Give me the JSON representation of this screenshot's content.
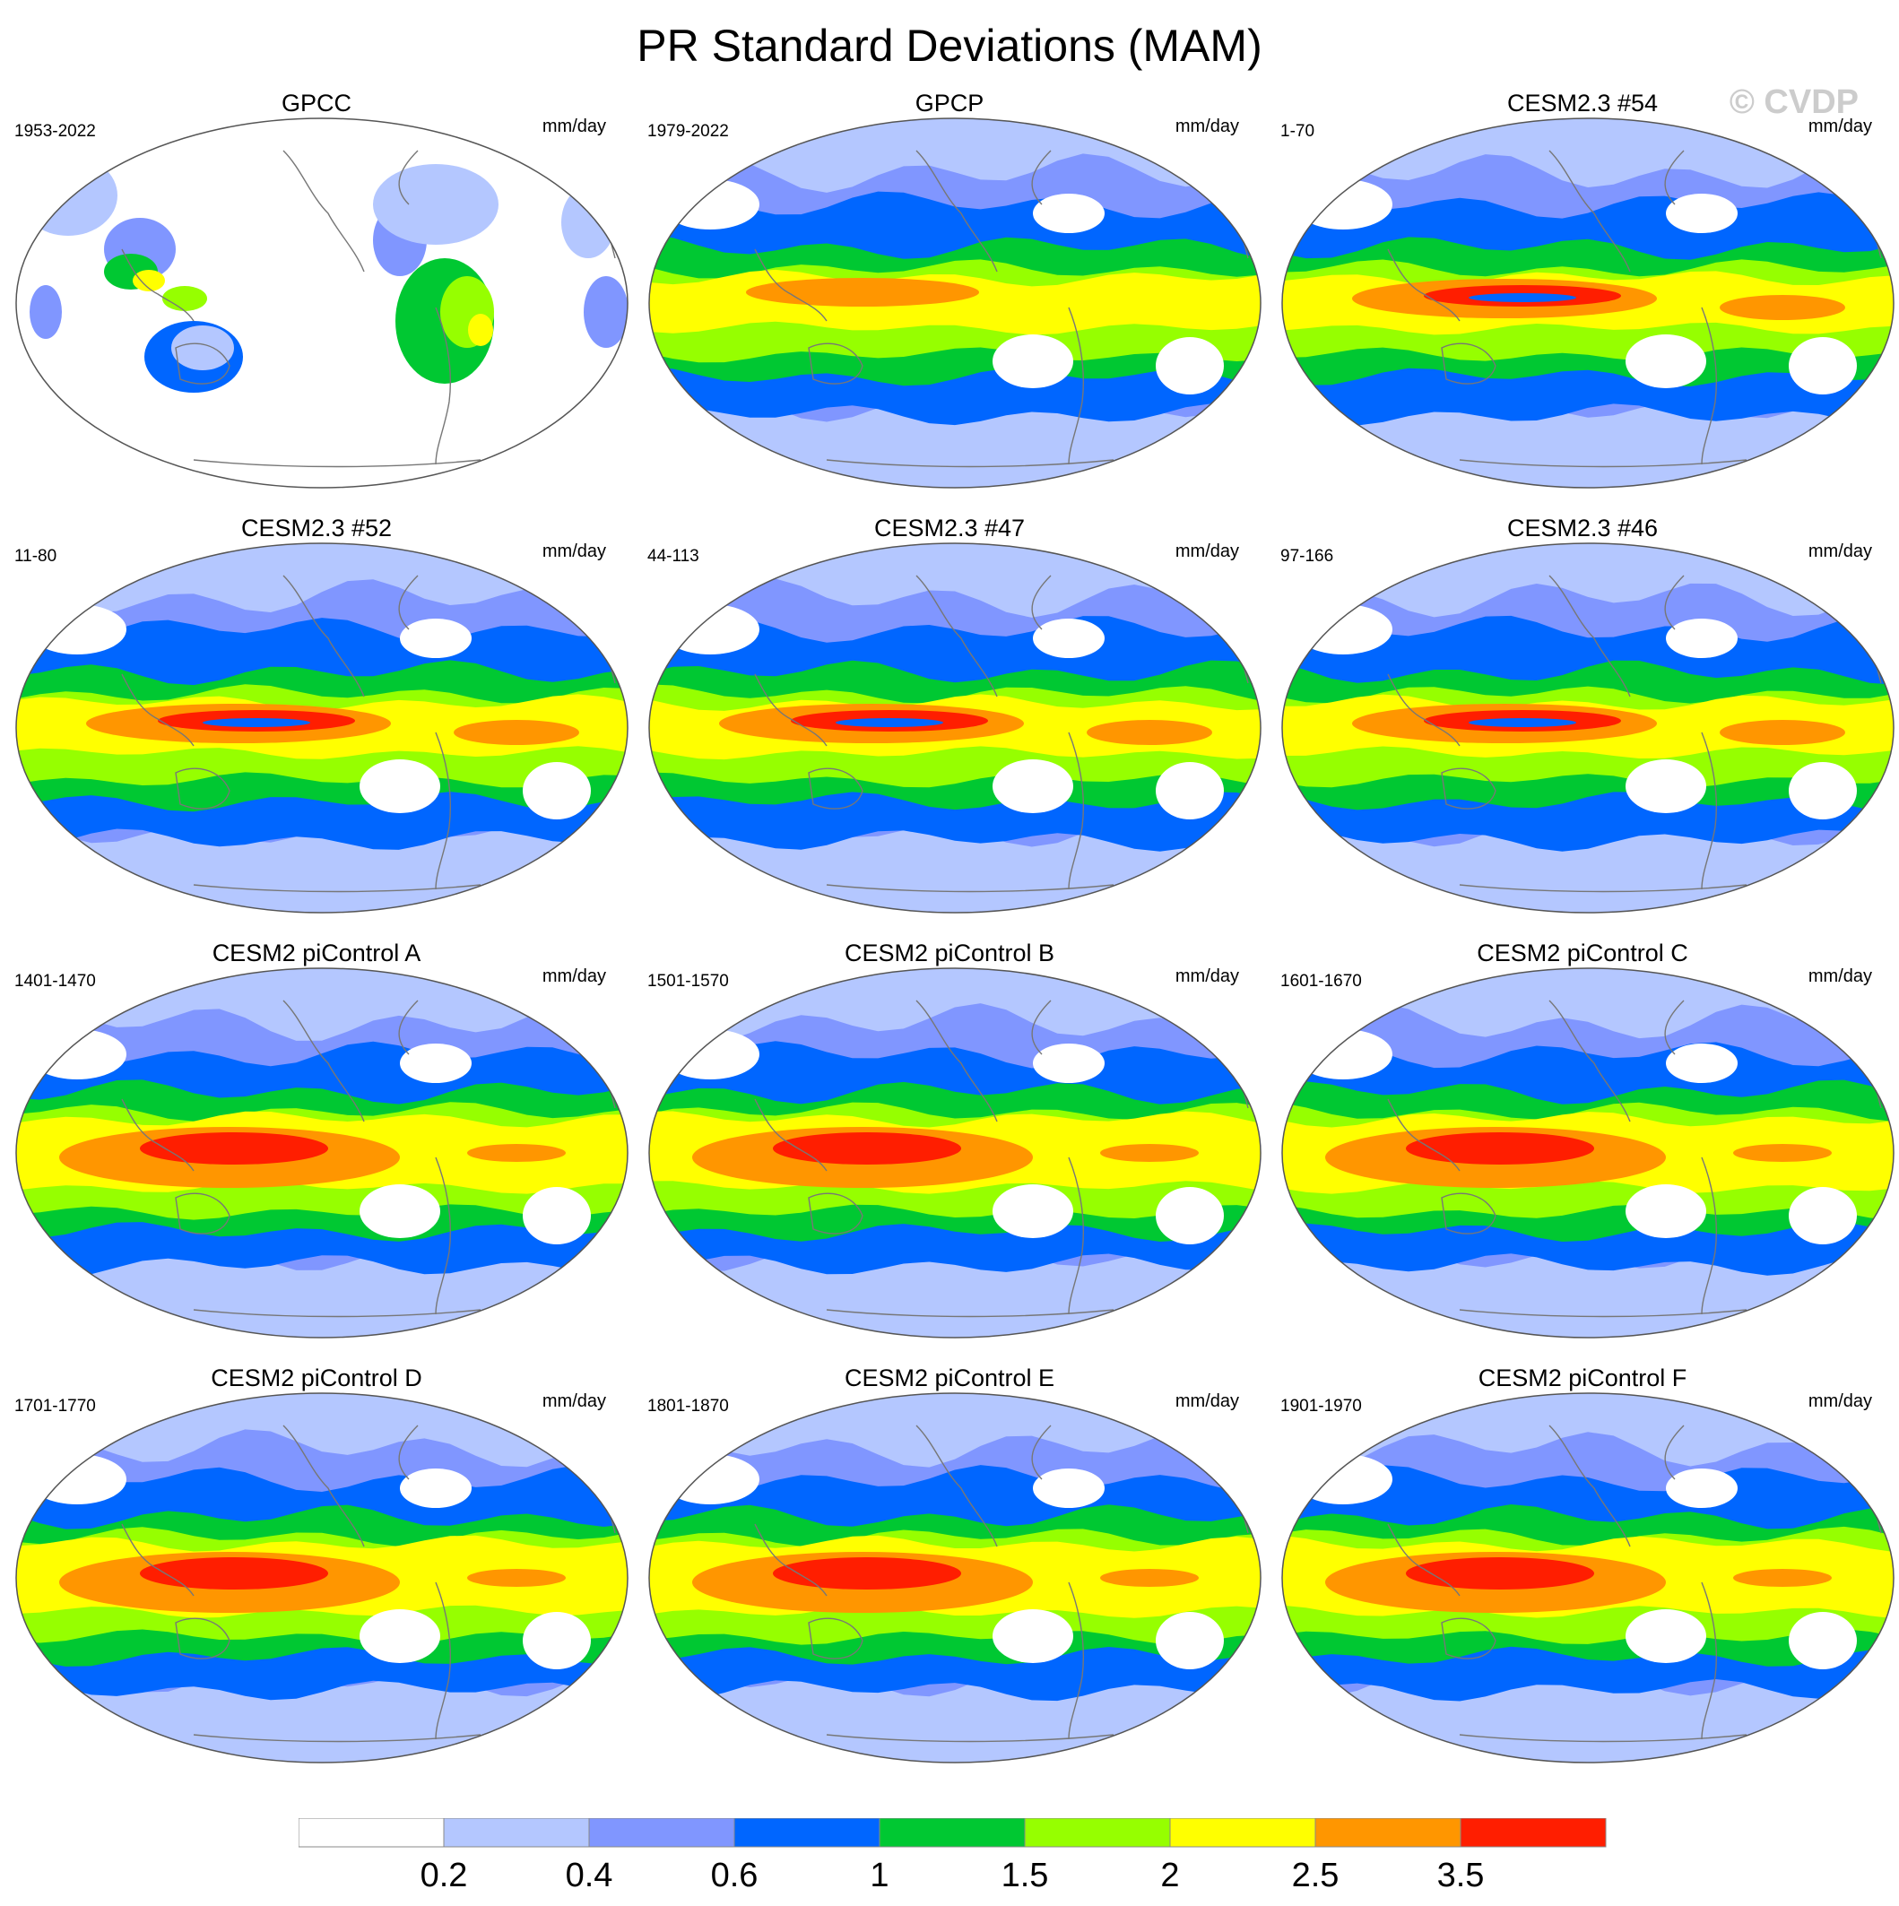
{
  "title": "PR Standard Deviations (MAM)",
  "watermark": "© CVDP",
  "units": "mm/day",
  "colors": {
    "levels": [
      "#ffffff",
      "#b4c7ff",
      "#8096ff",
      "#0066ff",
      "#00c832",
      "#96ff00",
      "#ffff00",
      "#ff9600",
      "#ff1e00"
    ],
    "land_outline": "#777777",
    "frame": "#555555"
  },
  "panels": [
    {
      "title": "GPCC",
      "period": "1953-2022",
      "type": "obs-land"
    },
    {
      "title": "GPCP",
      "period": "1979-2022",
      "type": "obs"
    },
    {
      "title": "CESM2.3 #54",
      "period": "1-70",
      "type": "cesm23"
    },
    {
      "title": "CESM2.3 #52",
      "period": "11-80",
      "type": "cesm23"
    },
    {
      "title": "CESM2.3 #47",
      "period": "44-113",
      "type": "cesm23"
    },
    {
      "title": "CESM2.3 #46",
      "period": "97-166",
      "type": "cesm23"
    },
    {
      "title": "CESM2 piControl A",
      "period": "1401-1470",
      "type": "picontrol"
    },
    {
      "title": "CESM2 piControl B",
      "period": "1501-1570",
      "type": "picontrol"
    },
    {
      "title": "CESM2 piControl C",
      "period": "1601-1670",
      "type": "picontrol"
    },
    {
      "title": "CESM2 piControl D",
      "period": "1701-1770",
      "type": "picontrol"
    },
    {
      "title": "CESM2 piControl E",
      "period": "1801-1870",
      "type": "picontrol"
    },
    {
      "title": "CESM2 piControl F",
      "period": "1901-1970",
      "type": "picontrol"
    }
  ],
  "chart_data": {
    "type": "heatmap",
    "title": "PR Standard Deviations (MAM)",
    "units": "mm/day",
    "colorbar": {
      "levels": [
        "0.2",
        "0.4",
        "0.6",
        "1",
        "1.5",
        "2",
        "2.5",
        "3.5"
      ]
    }
  }
}
